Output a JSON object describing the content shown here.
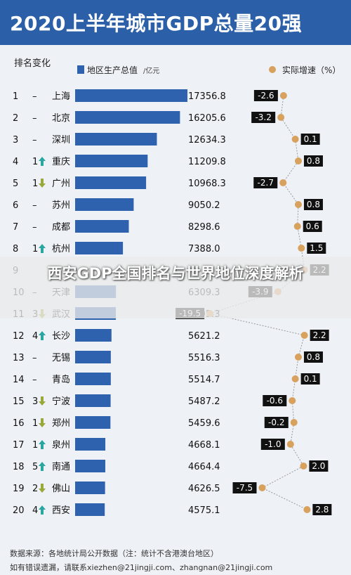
{
  "title": "2020上半年城市GDP总量20强",
  "overlay_caption": "西安GDP全国排名与世界地位深度解析",
  "headers": {
    "rank": "排名",
    "change": "变化",
    "gdp_legend": "地区生产总值",
    "gdp_unit": "/亿元",
    "growth_legend": "实际增速（%）"
  },
  "colors": {
    "title_bg": "#2b5fa8",
    "bar": "#2e62ae",
    "dot": "#d9a15e",
    "label_box": "#111111"
  },
  "chart_data": {
    "type": "bar",
    "categories": [
      "上海",
      "北京",
      "深圳",
      "重庆",
      "广州",
      "苏州",
      "成都",
      "杭州",
      "武汉",
      "天津",
      "长沙",
      "无锡",
      "青岛",
      "宁波",
      "郑州",
      "泉州",
      "南通",
      "佛山",
      "西安"
    ],
    "values": [
      17356.8,
      16205.6,
      12634.3,
      11209.8,
      10968.3,
      9050.2,
      8298.6,
      7388.0,
      6295.3,
      6309.3,
      5621.2,
      5516.3,
      5514.7,
      5487.2,
      5459.6,
      4668.1,
      4664.4,
      4626.5,
      4575.1
    ],
    "growth": [
      -2.6,
      -3.2,
      0.1,
      0.8,
      -2.7,
      0.8,
      0.6,
      1.5,
      -19.5,
      -3.9,
      2.2,
      0.8,
      0.1,
      -0.6,
      -0.2,
      -1.0,
      2.0,
      -7.5,
      2.8
    ],
    "ranks": [
      "1",
      "2",
      "3",
      "4",
      "5",
      "6",
      "7",
      "8",
      "9",
      "10",
      "11",
      "12",
      "13",
      "14",
      "15",
      "16",
      "17",
      "18",
      "19",
      "20"
    ],
    "changes": [
      "–",
      "–",
      "–",
      "1",
      "1",
      "–",
      "–",
      "1",
      "",
      "–",
      "3",
      "4",
      "–",
      "–",
      "3",
      "1",
      "1",
      "5",
      "2",
      "4"
    ],
    "change_dir": [
      "none",
      "none",
      "none",
      "up",
      "down",
      "none",
      "none",
      "up",
      "none",
      "none",
      "down",
      "up",
      "none",
      "none",
      "down",
      "down",
      "up",
      "up",
      "down",
      "up"
    ],
    "row_city": [
      "上海",
      "北京",
      "深圳",
      "重庆",
      "广州",
      "苏州",
      "成都",
      "杭州",
      "",
      "天津",
      "武汉",
      "长沙",
      "无锡",
      "青岛",
      "宁波",
      "郑州",
      "泉州",
      "南通",
      "佛山",
      "西安"
    ],
    "row_value": [
      "17356.8",
      "16205.6",
      "12634.3",
      "11209.8",
      "10968.3",
      "9050.2",
      "8298.6",
      "7388.0",
      "",
      "6309.3",
      "6295.3",
      "5621.2",
      "5516.3",
      "5514.7",
      "5487.2",
      "5459.6",
      "4668.1",
      "4664.4",
      "4626.5",
      "4575.1"
    ],
    "row_growth": [
      "-2.6",
      "-3.2",
      "0.1",
      "0.8",
      "-2.7",
      "0.8",
      "0.6",
      "1.5",
      "2.2",
      "-3.9",
      "-19.5",
      "2.2",
      "0.8",
      "0.1",
      "-0.6",
      "-0.2",
      "-1.0",
      "2.0",
      "-7.5",
      "2.8"
    ],
    "xlim": [
      0,
      17356.8
    ]
  },
  "footer": {
    "source": "数据来源：各地统计局公开数据（注：统计不含港澳台地区）",
    "contact": "如有错误遗漏，请联系xiezhen@21jingji.com、zhangnan@21jingji.com"
  }
}
